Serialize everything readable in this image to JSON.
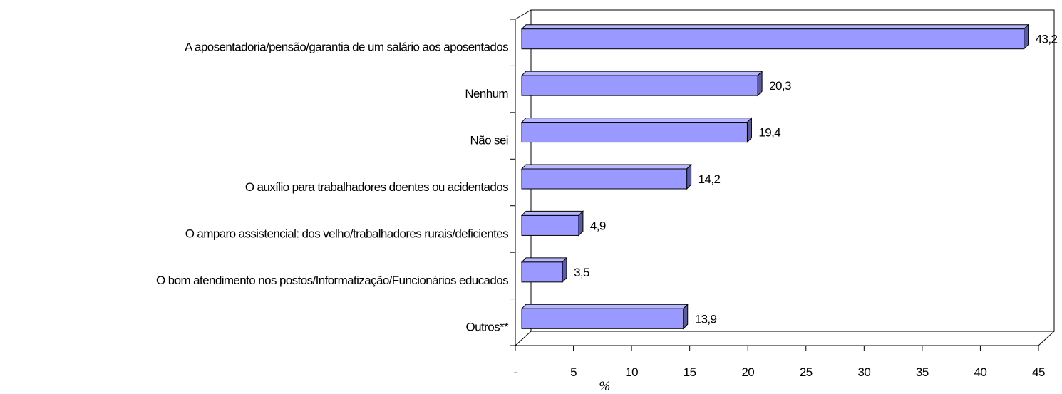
{
  "chart_data": {
    "type": "bar",
    "orientation": "horizontal",
    "categories": [
      "A aposentadoria/pensão/garantia de um salário aos aposentados",
      "Nenhum",
      "Não sei",
      "O auxílio para trabalhadores doentes ou acidentados",
      "O amparo assistencial: dos velho/trabalhadores rurais/deficientes",
      "O bom atendimento nos postos/Informatização/Funcionários educados",
      "Outros**"
    ],
    "values": [
      43.2,
      20.3,
      19.4,
      14.2,
      4.9,
      3.5,
      13.9
    ],
    "value_labels": [
      "43,2",
      "20,3",
      "19,4",
      "14,2",
      "4,9",
      "3,5",
      "13,9"
    ],
    "color": "#9999ff",
    "xlabel": "%",
    "xlim": [
      0,
      45
    ],
    "xticks": [
      {
        "value": 0,
        "label": "-"
      },
      5,
      10,
      15,
      20,
      25,
      30,
      35,
      40,
      45
    ]
  }
}
